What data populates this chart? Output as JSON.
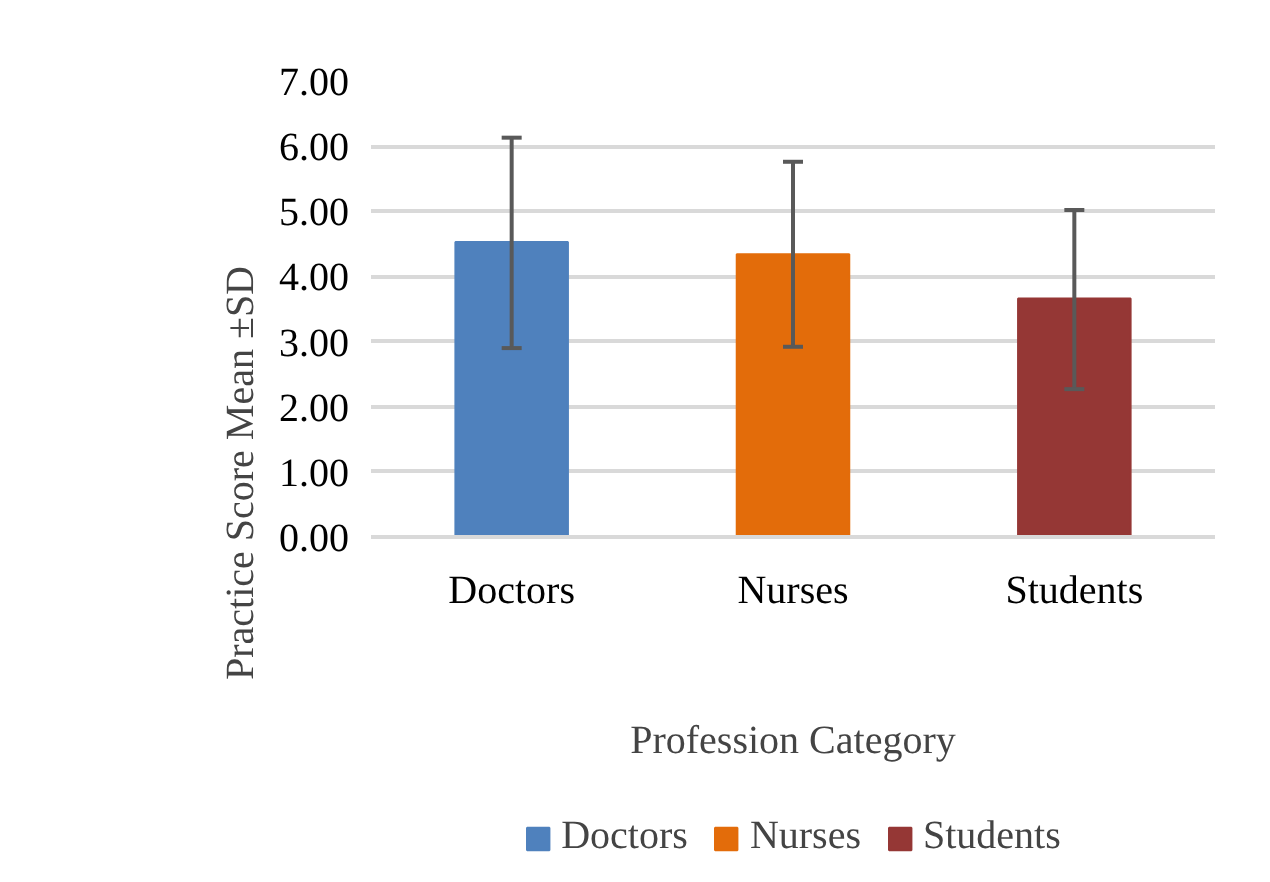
{
  "chart_data": {
    "type": "bar",
    "xlabel": "Profession Category",
    "ylabel": "Practice Score Mean ±SD",
    "categories": [
      "Doctors",
      "Nurses",
      "Students"
    ],
    "series": [
      {
        "name": "Doctors",
        "color": "#4f81bd",
        "values": [
          4.53,
          null,
          null
        ],
        "errors": [
          [
            2.9,
            6.13
          ],
          null,
          null
        ]
      },
      {
        "name": "Nurses",
        "color": "#e36c0a",
        "values": [
          null,
          4.34,
          null
        ],
        "errors": [
          null,
          [
            2.92,
            5.76
          ],
          null
        ]
      },
      {
        "name": "Students",
        "color": "#953735",
        "values": [
          null,
          null,
          3.66
        ],
        "errors": [
          null,
          null,
          [
            2.27,
            5.02
          ]
        ]
      }
    ],
    "ylim": [
      0,
      7
    ],
    "yticks": [
      {
        "value": 0,
        "label": "0.00"
      },
      {
        "value": 1,
        "label": "1.00"
      },
      {
        "value": 2,
        "label": "2.00"
      },
      {
        "value": 3,
        "label": "3.00"
      },
      {
        "value": 4,
        "label": "4.00"
      },
      {
        "value": 5,
        "label": "5.00"
      },
      {
        "value": 6,
        "label": "6.00"
      },
      {
        "value": 7,
        "label": "7.00"
      }
    ],
    "grid": "y",
    "legend": "bottom"
  }
}
